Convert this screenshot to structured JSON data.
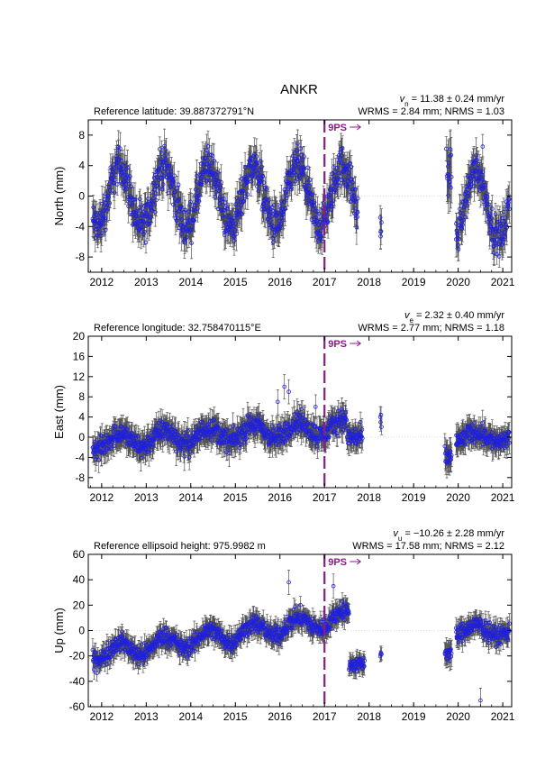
{
  "figure": {
    "title": "ANKR",
    "event_color": "#8b1a8b",
    "point_color": "#1f1fe0",
    "errorbar_color": "#555555"
  },
  "chart_data": [
    {
      "type": "scatter",
      "component": "north",
      "ylabel": "North (mm)",
      "reference_label": "Reference latitude: 39.887372791°N",
      "velocity_symbol": "v",
      "velocity_subscript": "n",
      "velocity_value": " = 11.38 ± 0.24 mm/yr",
      "stats_label": "WRMS = 2.84 mm; NRMS = 1.03",
      "xlim": [
        2011.7,
        2021.2
      ],
      "ylim": [
        -10,
        10
      ],
      "yticks": [
        -8,
        -4,
        0,
        4,
        8
      ],
      "xticks": [
        2012,
        2013,
        2014,
        2015,
        2016,
        2017,
        2018,
        2019,
        2020,
        2021
      ],
      "event": {
        "x": 2017.0,
        "label": "9PS"
      },
      "segments": [
        {
          "x": [
            2011.8,
            2017.75
          ],
          "amp": 4.0,
          "noise": 1.8,
          "err": 1.8,
          "offset": 0,
          "trend": 0
        },
        {
          "x": [
            2018.25,
            2018.28
          ],
          "amp": 0,
          "noise": 1.5,
          "err": 2.0,
          "offset": -4,
          "trend": 0
        },
        {
          "x": [
            2019.75,
            2019.85
          ],
          "amp": 0,
          "noise": 2.5,
          "err": 3.0,
          "offset": 3,
          "trend": 0
        },
        {
          "x": [
            2019.95,
            2021.15
          ],
          "amp": 4.5,
          "noise": 1.6,
          "err": 1.8,
          "offset": -1,
          "trend": 0
        }
      ],
      "highlights": [
        {
          "x": 2019.73,
          "y": 6.2
        },
        {
          "x": 2019.8,
          "y": 1.3
        },
        {
          "x": 2020.55,
          "y": 6.5
        },
        {
          "x": 2018.26,
          "y": -5.3
        }
      ]
    },
    {
      "type": "scatter",
      "component": "east",
      "ylabel": "East (mm)",
      "reference_label": "Reference longitude: 32.758470115°E",
      "velocity_symbol": "v",
      "velocity_subscript": "e",
      "velocity_value": " = 2.32 ± 0.40 mm/yr",
      "stats_label": "WRMS = 2.77 mm; NRMS = 1.18",
      "xlim": [
        2011.7,
        2021.2
      ],
      "ylim": [
        -10,
        20
      ],
      "yticks": [
        -8,
        -4,
        0,
        4,
        8,
        12,
        16,
        20
      ],
      "xticks": [
        2012,
        2013,
        2014,
        2015,
        2016,
        2017,
        2018,
        2019,
        2020,
        2021
      ],
      "event": {
        "x": 2017.0,
        "label": "9PS"
      },
      "segments": [
        {
          "x": [
            2011.8,
            2017.5
          ],
          "amp": 1.5,
          "noise": 1.5,
          "err": 2.2,
          "offset": 0.5,
          "trend": 0.55
        },
        {
          "x": [
            2017.5,
            2017.85
          ],
          "amp": 0,
          "noise": 1.5,
          "err": 2.0,
          "offset": 0,
          "trend": 0
        },
        {
          "x": [
            2018.25,
            2018.28
          ],
          "amp": 0,
          "noise": 1.5,
          "err": 2.0,
          "offset": 2.5,
          "trend": 0
        },
        {
          "x": [
            2019.7,
            2019.85
          ],
          "amp": 0,
          "noise": 1.5,
          "err": 2.5,
          "offset": -4,
          "trend": 0
        },
        {
          "x": [
            2019.95,
            2021.15
          ],
          "amp": 1.0,
          "noise": 1.3,
          "err": 2.0,
          "offset": 0,
          "trend": 0
        }
      ],
      "highlights": [
        {
          "x": 2016.1,
          "y": 10.0
        },
        {
          "x": 2016.2,
          "y": 9.0
        },
        {
          "x": 2015.95,
          "y": 7.0
        },
        {
          "x": 2016.8,
          "y": 6.0
        }
      ]
    },
    {
      "type": "scatter",
      "component": "up",
      "ylabel": "Up (mm)",
      "reference_label": "Reference ellipsoid height: 975.9982 m",
      "velocity_symbol": "v",
      "velocity_subscript": "u",
      "velocity_value": " = −10.26 ± 2.28 mm/yr",
      "stats_label": "WRMS = 17.58 mm; NRMS = 2.12",
      "xlim": [
        2011.7,
        2021.2
      ],
      "ylim": [
        -60,
        60
      ],
      "yticks": [
        -60,
        -40,
        -20,
        0,
        20,
        40,
        60
      ],
      "xticks": [
        2012,
        2013,
        2014,
        2015,
        2016,
        2017,
        2018,
        2019,
        2020,
        2021
      ],
      "event": {
        "x": 2017.0,
        "label": "9PS"
      },
      "segments": [
        {
          "x": [
            2011.8,
            2017.55
          ],
          "amp": 6,
          "noise": 5,
          "err": 7,
          "offset": -5,
          "trend": 5
        },
        {
          "x": [
            2017.55,
            2017.9
          ],
          "amp": 0,
          "noise": 4,
          "err": 6,
          "offset": -27,
          "trend": 0
        },
        {
          "x": [
            2018.25,
            2018.28
          ],
          "amp": 0,
          "noise": 4,
          "err": 6,
          "offset": -18,
          "trend": 0
        },
        {
          "x": [
            2019.7,
            2019.85
          ],
          "amp": 0,
          "noise": 4,
          "err": 8,
          "offset": -18,
          "trend": 0
        },
        {
          "x": [
            2019.95,
            2021.15
          ],
          "amp": 4,
          "noise": 5,
          "err": 7,
          "offset": 0,
          "trend": 0
        }
      ],
      "highlights": [
        {
          "x": 2020.5,
          "y": -55
        },
        {
          "x": 2016.2,
          "y": 38
        },
        {
          "x": 2017.2,
          "y": 35
        }
      ]
    }
  ]
}
